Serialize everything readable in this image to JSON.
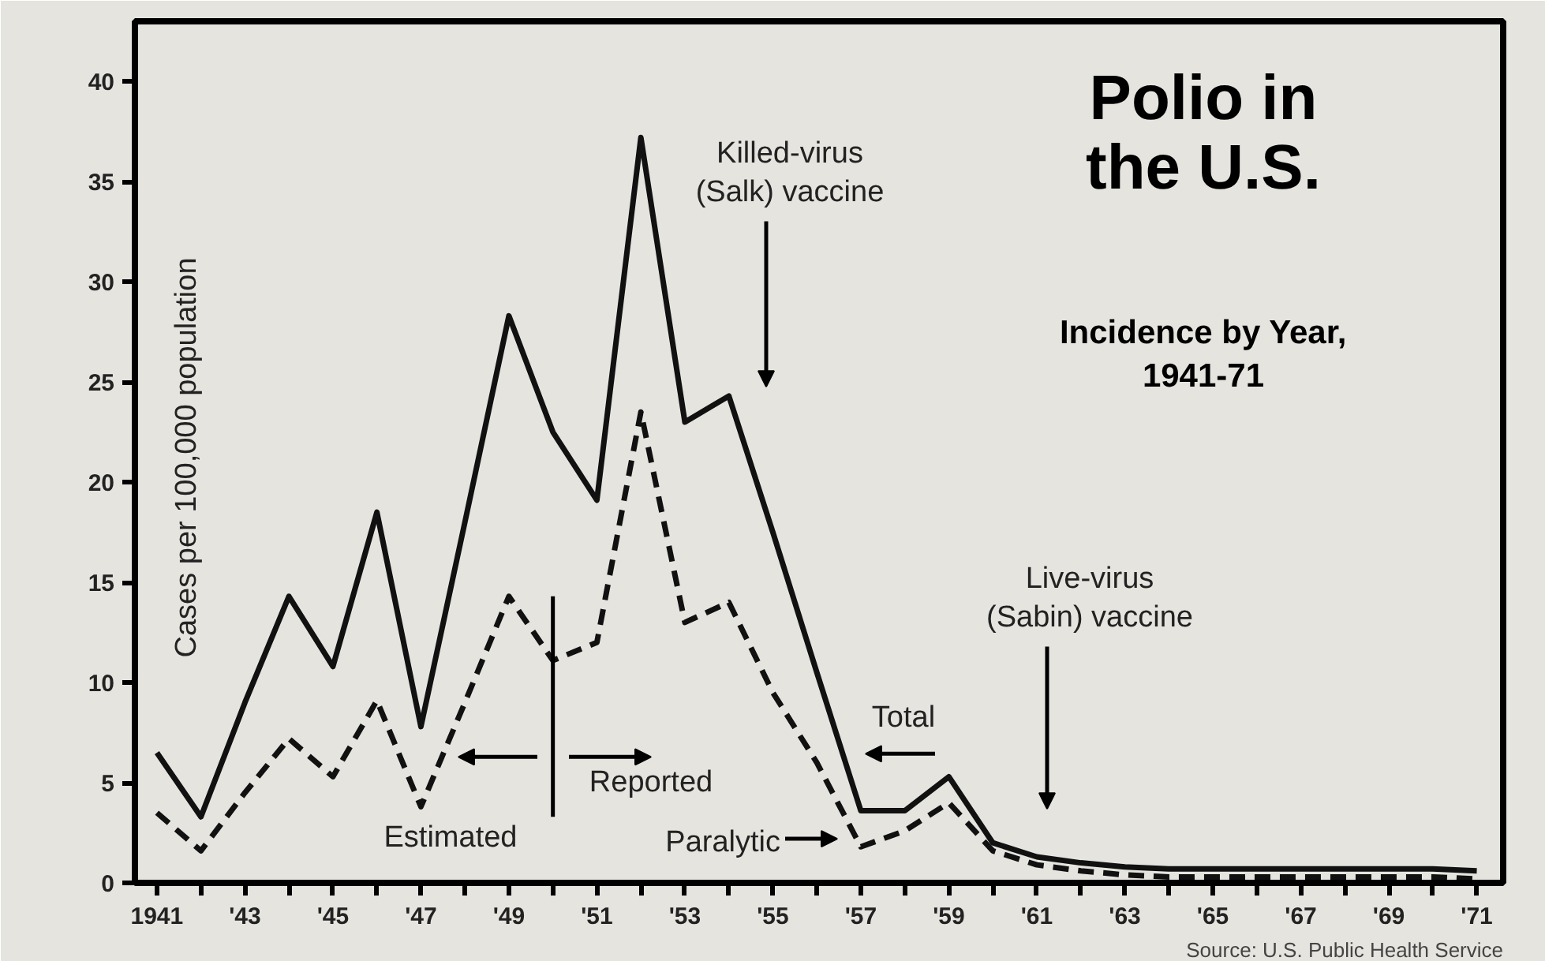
{
  "chart_data": {
    "type": "line",
    "title": "Polio in\nthe U.S.",
    "subtitle": "Incidence by Year,\n1941-71",
    "ylabel": "Cases per 100,000 population",
    "x": [
      1941,
      1942,
      1943,
      1944,
      1945,
      1946,
      1947,
      1948,
      1949,
      1950,
      1951,
      1952,
      1953,
      1954,
      1955,
      1956,
      1957,
      1958,
      1959,
      1960,
      1961,
      1962,
      1963,
      1964,
      1965,
      1966,
      1967,
      1968,
      1969,
      1970,
      1971
    ],
    "series": [
      {
        "color": "#111111",
        "line_style": "solid",
        "values": [
          6.5,
          3.3,
          9,
          14.3,
          10.8,
          18.5,
          7.8,
          18,
          28.3,
          22.5,
          19.1,
          37.2,
          23,
          24.3,
          17.5,
          10.5,
          3.6,
          3.6,
          5.3,
          2.0,
          1.3,
          1.0,
          0.8,
          0.7,
          0.7,
          0.7,
          0.7,
          0.7,
          0.7,
          0.7,
          0.6
        ]
      },
      {
        "color": "#111111",
        "line_style": "dashed",
        "values": [
          3.5,
          1.6,
          4.5,
          7.2,
          5.3,
          9.1,
          3.8,
          9,
          14.3,
          11.1,
          12,
          23.5,
          13,
          14,
          9.5,
          6,
          1.8,
          2.6,
          4.0,
          1.6,
          0.9,
          0.6,
          0.4,
          0.3,
          0.3,
          0.3,
          0.3,
          0.3,
          0.3,
          0.3,
          0.2
        ]
      }
    ],
    "xlim": [
      1940.5,
      1971.6
    ],
    "ylim": [
      0,
      43
    ],
    "yticks": [
      0,
      5,
      10,
      15,
      20,
      25,
      30,
      35,
      40
    ],
    "xticks": [
      {
        "value": 1941,
        "label": "1941"
      },
      {
        "value": 1942,
        "label": null
      },
      {
        "value": 1943,
        "label": "'43"
      },
      {
        "value": 1944,
        "label": null
      },
      {
        "value": 1945,
        "label": "'45"
      },
      {
        "value": 1946,
        "label": null
      },
      {
        "value": 1947,
        "label": "'47"
      },
      {
        "value": 1948,
        "label": null
      },
      {
        "value": 1949,
        "label": "'49"
      },
      {
        "value": 1950,
        "label": null
      },
      {
        "value": 1951,
        "label": "'51"
      },
      {
        "value": 1952,
        "label": null
      },
      {
        "value": 1953,
        "label": "'53"
      },
      {
        "value": 1954,
        "label": null
      },
      {
        "value": 1955,
        "label": "'55"
      },
      {
        "value": 1956,
        "label": null
      },
      {
        "value": 1957,
        "label": "'57"
      },
      {
        "value": 1958,
        "label": null
      },
      {
        "value": 1959,
        "label": "'59"
      },
      {
        "value": 1960,
        "label": null
      },
      {
        "value": 1961,
        "label": "'61"
      },
      {
        "value": 1962,
        "label": null
      },
      {
        "value": 1963,
        "label": "'63"
      },
      {
        "value": 1964,
        "label": null
      },
      {
        "value": 1965,
        "label": "'65"
      },
      {
        "value": 1966,
        "label": null
      },
      {
        "value": 1967,
        "label": "'67"
      },
      {
        "value": 1968,
        "label": null
      },
      {
        "value": 1969,
        "label": "'69"
      },
      {
        "value": 1970,
        "label": null
      },
      {
        "value": 1971,
        "label": "'71"
      }
    ],
    "ref_lines": [
      {
        "axis": "x",
        "value": 1950,
        "label": null
      }
    ],
    "annotations": [
      "Killed-virus\n(Salk) vaccine",
      "Live-virus\n(Sabin) vaccine",
      "Total",
      "Paralytic",
      "Estimated",
      "Reported",
      "Source: U.S. Public Health Service"
    ],
    "grid": false,
    "marker": "none"
  }
}
